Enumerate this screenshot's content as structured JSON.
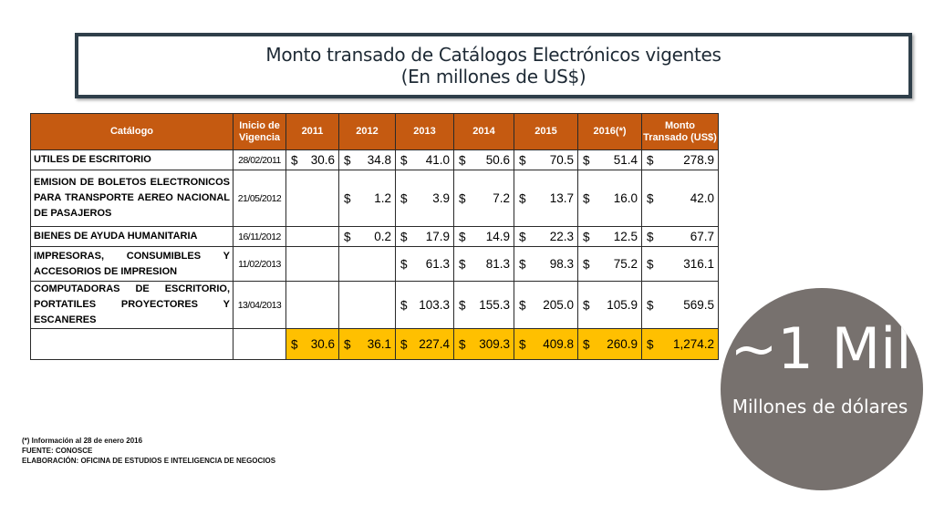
{
  "title": {
    "line1": "Monto transado de Catálogos Electrónicos vigentes",
    "line2": "(En millones de US$)"
  },
  "table": {
    "headers": [
      "Catálogo",
      "Inicio de Vigencia",
      "2011",
      "2012",
      "2013",
      "2014",
      "2015",
      "2016(*)",
      "Monto Transado (US$)"
    ],
    "currency_symbol": "$",
    "rows": [
      {
        "name": "UTILES DE ESCRITORIO",
        "date": "28/02/2011",
        "values": [
          "30.6",
          "34.8",
          "41.0",
          "50.6",
          "70.5",
          "51.4",
          "278.9"
        ]
      },
      {
        "name": "EMISION DE BOLETOS ELECTRONICOS PARA TRANSPORTE AEREO NACIONAL DE PASAJEROS",
        "date": "21/05/2012",
        "values": [
          "",
          "1.2",
          "3.9",
          "7.2",
          "13.7",
          "16.0",
          "42.0"
        ]
      },
      {
        "name": "BIENES DE AYUDA HUMANITARIA",
        "date": "16/11/2012",
        "values": [
          "",
          "0.2",
          "17.9",
          "14.9",
          "22.3",
          "12.5",
          "67.7"
        ]
      },
      {
        "name": "IMPRESORAS, CONSUMIBLES Y ACCESORIOS DE IMPRESION",
        "date": "11/02/2013",
        "values": [
          "",
          "",
          "61.3",
          "81.3",
          "98.3",
          "75.2",
          "316.1"
        ]
      },
      {
        "name": "COMPUTADORAS DE ESCRITORIO, PORTATILES PROYECTORES Y ESCANERES",
        "date": "13/04/2013",
        "values": [
          "",
          "",
          "103.3",
          "155.3",
          "205.0",
          "105.9",
          "569.5"
        ]
      }
    ],
    "totals": [
      "30.6",
      "36.1",
      "227.4",
      "309.3",
      "409.8",
      "260.9",
      "1,274.2"
    ]
  },
  "notes": [
    "(*) Información al 28 de enero 2016",
    "FUENTE: CONOSCE",
    "ELABORACIÓN: OFICINA DE ESTUDIOS E INTELIGENCIA DE NEGOCIOS"
  ],
  "highlight": {
    "big": "~1 Mil",
    "small": "Millones de dólares"
  },
  "colors": {
    "header_bg": "#c55a11",
    "total_bg": "#ffc000",
    "circle_bg": "#77716e",
    "title_border": "#2f3f4a"
  }
}
